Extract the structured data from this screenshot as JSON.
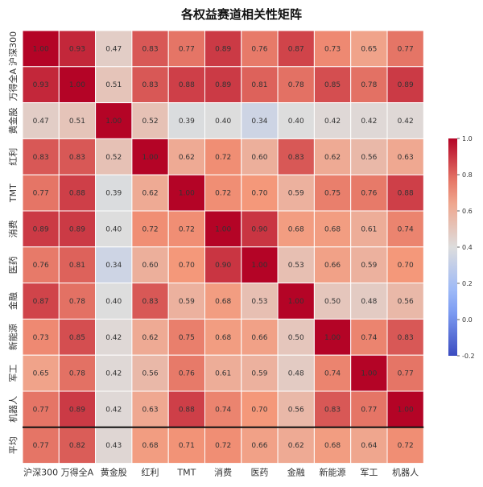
{
  "chart_data": {
    "type": "heatmap",
    "title": "各权益赛道相关性矩阵",
    "columns": [
      "沪深300",
      "万得全A",
      "黄金股",
      "红利",
      "TMT",
      "消费",
      "医药",
      "金融",
      "新能源",
      "军工",
      "机器人"
    ],
    "rows": [
      "沪深300",
      "万得全A",
      "黄金股",
      "红利",
      "TMT",
      "消费",
      "医药",
      "金融",
      "新能源",
      "军工",
      "机器人",
      "平均"
    ],
    "values": [
      [
        1.0,
        0.93,
        0.47,
        0.83,
        0.77,
        0.89,
        0.76,
        0.87,
        0.73,
        0.65,
        0.77
      ],
      [
        0.93,
        1.0,
        0.51,
        0.83,
        0.88,
        0.89,
        0.81,
        0.78,
        0.85,
        0.78,
        0.89
      ],
      [
        0.47,
        0.51,
        1.0,
        0.52,
        0.39,
        0.4,
        0.34,
        0.4,
        0.42,
        0.42,
        0.42
      ],
      [
        0.83,
        0.83,
        0.52,
        1.0,
        0.62,
        0.72,
        0.6,
        0.83,
        0.62,
        0.56,
        0.63
      ],
      [
        0.77,
        0.88,
        0.39,
        0.62,
        1.0,
        0.72,
        0.7,
        0.59,
        0.75,
        0.76,
        0.88
      ],
      [
        0.89,
        0.89,
        0.4,
        0.72,
        0.72,
        1.0,
        0.9,
        0.68,
        0.68,
        0.61,
        0.74
      ],
      [
        0.76,
        0.81,
        0.34,
        0.6,
        0.7,
        0.9,
        1.0,
        0.53,
        0.66,
        0.59,
        0.7
      ],
      [
        0.87,
        0.78,
        0.4,
        0.83,
        0.59,
        0.68,
        0.53,
        1.0,
        0.5,
        0.48,
        0.56
      ],
      [
        0.73,
        0.85,
        0.42,
        0.62,
        0.75,
        0.68,
        0.66,
        0.5,
        1.0,
        0.74,
        0.83
      ],
      [
        0.65,
        0.78,
        0.42,
        0.56,
        0.76,
        0.61,
        0.59,
        0.48,
        0.74,
        1.0,
        0.77
      ],
      [
        0.77,
        0.89,
        0.42,
        0.63,
        0.88,
        0.74,
        0.7,
        0.56,
        0.83,
        0.77,
        1.0
      ],
      [
        0.77,
        0.82,
        0.43,
        0.68,
        0.71,
        0.72,
        0.66,
        0.62,
        0.68,
        0.64,
        0.72
      ]
    ],
    "colorbar": {
      "min": -0.2,
      "max": 1.0,
      "ticks": [
        "1.0",
        "0.8",
        "0.6",
        "0.4",
        "0.2",
        "0.0",
        "-0.2"
      ],
      "colormap": "coolwarm",
      "colors": {
        "low": "#3b4cc0",
        "mid": "#dddddd",
        "high": "#b40426"
      }
    },
    "separator_before_row": "平均"
  }
}
